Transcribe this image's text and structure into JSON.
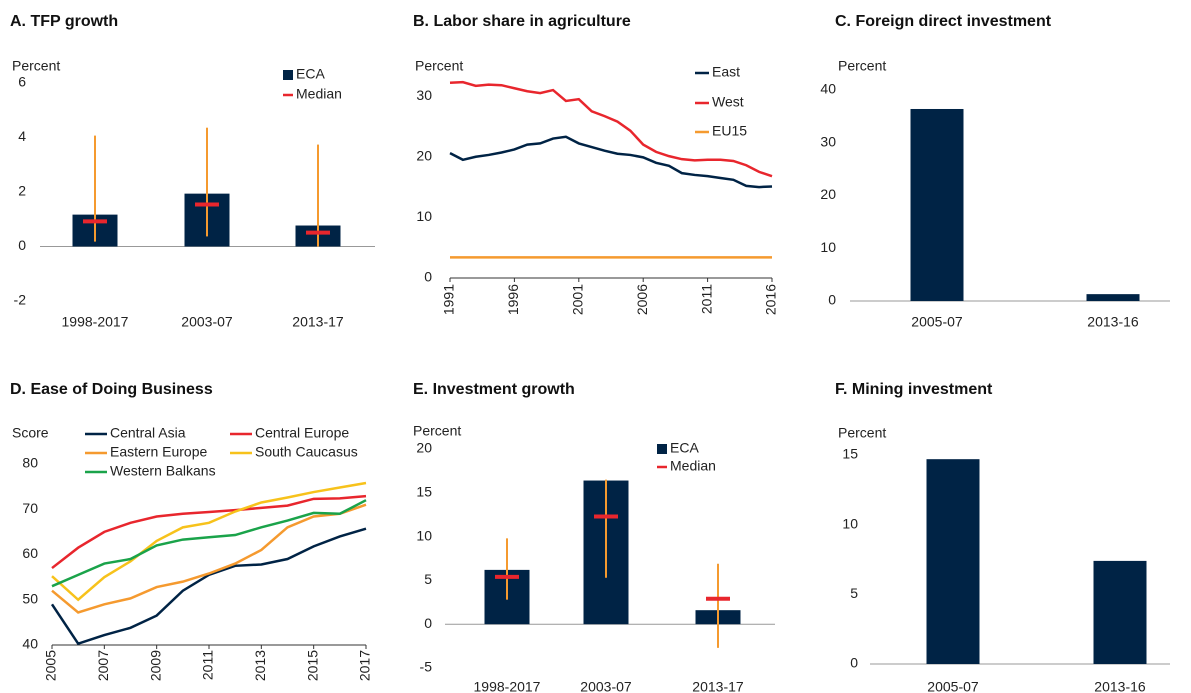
{
  "chart_data": [
    {
      "type": "bar",
      "title": "A. TFP growth",
      "y_label": "Percent",
      "categories": [
        "1998-2017",
        "2003-07",
        "2013-17"
      ],
      "series": [
        {
          "name": "ECA",
          "color": "#002345",
          "values": [
            1.17,
            1.94,
            0.77
          ]
        },
        {
          "name": "Median",
          "color": "#e8262d",
          "values": [
            0.92,
            1.54,
            0.51
          ]
        }
      ],
      "ranges": {
        "color": "#f59a2f",
        "low": [
          0.18,
          0.37,
          0
        ],
        "high": [
          4.07,
          4.36,
          3.74
        ]
      },
      "ylim": [
        -2,
        6
      ],
      "yticks": [
        -2,
        0,
        2,
        4,
        6
      ]
    },
    {
      "type": "line",
      "title": "B. Labor share in agriculture",
      "y_label": "Percent",
      "x": [
        1991,
        1992,
        1993,
        1994,
        1995,
        1996,
        1997,
        1998,
        1999,
        2000,
        2001,
        2002,
        2003,
        2004,
        2005,
        2006,
        2007,
        2008,
        2009,
        2010,
        2011,
        2012,
        2013,
        2014,
        2015,
        2016
      ],
      "series": [
        {
          "name": "East",
          "color": "#002345",
          "values": [
            20.6,
            19.5,
            20,
            20.3,
            20.7,
            21.2,
            22,
            22.2,
            23,
            23.3,
            22.2,
            21.6,
            21,
            20.5,
            20.3,
            19.9,
            19,
            18.5,
            17.3,
            17,
            16.8,
            16.5,
            16.2,
            15.2,
            15,
            15.1
          ]
        },
        {
          "name": "West",
          "color": "#e8262d",
          "values": [
            32.2,
            32.3,
            31.7,
            31.9,
            31.8,
            31.3,
            30.8,
            30.5,
            31,
            29.2,
            29.5,
            27.5,
            26.7,
            25.8,
            24.3,
            22,
            20.8,
            20.1,
            19.6,
            19.4,
            19.5,
            19.5,
            19.3,
            18.6,
            17.5,
            16.8
          ]
        },
        {
          "name": "EU15",
          "color": "#f59a2f",
          "values": [
            3.4,
            3.4,
            3.4,
            3.4,
            3.4,
            3.4,
            3.4,
            3.4,
            3.4,
            3.4,
            3.4,
            3.4,
            3.4,
            3.4,
            3.4,
            3.4,
            3.4,
            3.4,
            3.4,
            3.4,
            3.4,
            3.4,
            3.4,
            3.4,
            3.4,
            3.4
          ]
        }
      ],
      "xlim": [
        1991,
        2016
      ],
      "xticks": [
        1991,
        1996,
        2001,
        2006,
        2011,
        2016
      ],
      "ylim": [
        0,
        32
      ],
      "yticks": [
        0,
        10,
        20,
        30
      ]
    },
    {
      "type": "bar",
      "title": "C. Foreign direct investment",
      "y_label": "Percent",
      "categories": [
        "2005-07",
        "2013-16"
      ],
      "values": [
        36.4,
        1.3
      ],
      "color": "#002345",
      "ylim": [
        0,
        40
      ],
      "yticks": [
        0,
        10,
        20,
        30,
        40
      ]
    },
    {
      "type": "line",
      "title": "D. Ease of Doing Business",
      "y_label": "Score",
      "x": [
        2005,
        2006,
        2007,
        2008,
        2009,
        2010,
        2011,
        2012,
        2013,
        2014,
        2015,
        2016,
        2017
      ],
      "series": [
        {
          "name": "Central Asia",
          "color": "#002345",
          "values": [
            49,
            40.3,
            42.2,
            43.8,
            46.5,
            52,
            55.5,
            57.5,
            57.8,
            59,
            61.8,
            64,
            65.7
          ]
        },
        {
          "name": "Central Europe",
          "color": "#e8262d",
          "values": [
            57,
            61.5,
            65,
            67,
            68.4,
            69,
            69.4,
            69.8,
            70.3,
            70.8,
            72.3,
            72.4,
            72.9
          ]
        },
        {
          "name": "Eastern Europe",
          "color": "#f59a2f",
          "values": [
            52,
            47.2,
            49,
            50.3,
            52.8,
            54,
            55.8,
            58,
            61,
            66,
            68.4,
            69,
            71
          ]
        },
        {
          "name": "South Caucasus",
          "color": "#f7c21b",
          "values": [
            55.2,
            50,
            55,
            58.5,
            63,
            66,
            67,
            69.5,
            71.5,
            72.6,
            73.8,
            74.8,
            75.8
          ]
        },
        {
          "name": "Western Balkans",
          "color": "#1aa34a",
          "values": [
            53,
            55.5,
            58,
            59,
            62,
            63.3,
            63.8,
            64.3,
            66,
            67.5,
            69.2,
            69,
            72
          ]
        }
      ],
      "xlim": [
        2005,
        2017
      ],
      "xticks": [
        2005,
        2007,
        2009,
        2011,
        2013,
        2015,
        2017
      ],
      "ylim": [
        40,
        80
      ],
      "yticks": [
        40,
        50,
        60,
        70,
        80
      ]
    },
    {
      "type": "bar",
      "title": "E. Investment growth",
      "y_label": "Percent",
      "categories": [
        "1998-2017",
        "2003-07",
        "2013-17"
      ],
      "series": [
        {
          "name": "ECA",
          "color": "#002345",
          "values": [
            6.2,
            16.4,
            1.6
          ]
        },
        {
          "name": "Median",
          "color": "#e8262d",
          "values": [
            5.4,
            12.3,
            2.9
          ]
        }
      ],
      "ranges": {
        "color": "#f59a2f",
        "low": [
          2.8,
          5.3,
          -2.7
        ],
        "high": [
          9.8,
          16.5,
          6.9
        ]
      },
      "ylim": [
        -5,
        20
      ],
      "yticks": [
        -5,
        0,
        5,
        10,
        15,
        20
      ]
    },
    {
      "type": "bar",
      "title": "F. Mining investment",
      "y_label": "Percent",
      "categories": [
        "2005-07",
        "2013-16"
      ],
      "values": [
        14.7,
        7.4
      ],
      "color": "#002345",
      "ylim": [
        0,
        15
      ],
      "yticks": [
        0,
        5,
        10,
        15
      ]
    }
  ]
}
